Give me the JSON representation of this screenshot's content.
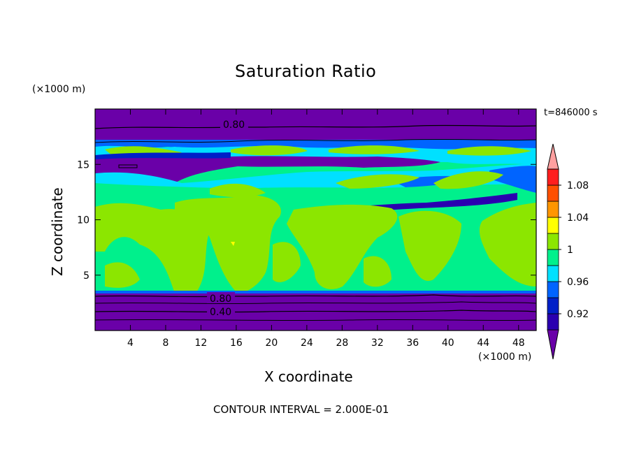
{
  "chart_data": {
    "type": "heatmap",
    "title": "Saturation Ratio",
    "xlabel": "X coordinate",
    "ylabel": "Z coordinate",
    "x_units": "(×1000 m)",
    "y_units": "(×1000 m)",
    "time_label": "t=846000 s",
    "contour_interval": "CONTOUR INTERVAL = 2.000E-01",
    "xlim": [
      0,
      50
    ],
    "ylim": [
      0,
      20
    ],
    "x_ticks": [
      4,
      8,
      12,
      16,
      20,
      24,
      28,
      32,
      36,
      40,
      44,
      48
    ],
    "y_ticks": [
      5,
      10,
      15
    ],
    "colorbar": {
      "levels": [
        0.92,
        0.94,
        0.96,
        0.98,
        1.0,
        1.02,
        1.04,
        1.06,
        1.08,
        1.1
      ],
      "colors": [
        "#6a00a8",
        "#2a00b0",
        "#0020c8",
        "#0064ff",
        "#00e0ff",
        "#00f08c",
        "#8ce600",
        "#ffff00",
        "#ff9600",
        "#ff5000",
        "#ff1e1e",
        "#ffa0a0"
      ],
      "labels": [
        "0.92",
        "0.96",
        "1",
        "1.04",
        "1.08"
      ],
      "label_values": [
        0.92,
        0.96,
        1.0,
        1.04,
        1.08
      ]
    },
    "contour_labels": [
      {
        "text": "0.80",
        "x": 14.5,
        "z": 18.6
      },
      {
        "text": "0.80",
        "x": 13.0,
        "z": 2.9
      },
      {
        "text": "0.40",
        "x": 13.0,
        "z": 1.7
      }
    ],
    "bands": [
      {
        "z": [
          0,
          3.2
        ],
        "value": 0.4
      },
      {
        "z": [
          3.2,
          3.5
        ],
        "value": 0.97
      },
      {
        "z": [
          3.5,
          13.5
        ],
        "value": 0.99
      },
      {
        "z": [
          13.5,
          17.3
        ],
        "value": 0.95
      },
      {
        "z": [
          17.3,
          20
        ],
        "value": 0.8
      }
    ]
  }
}
